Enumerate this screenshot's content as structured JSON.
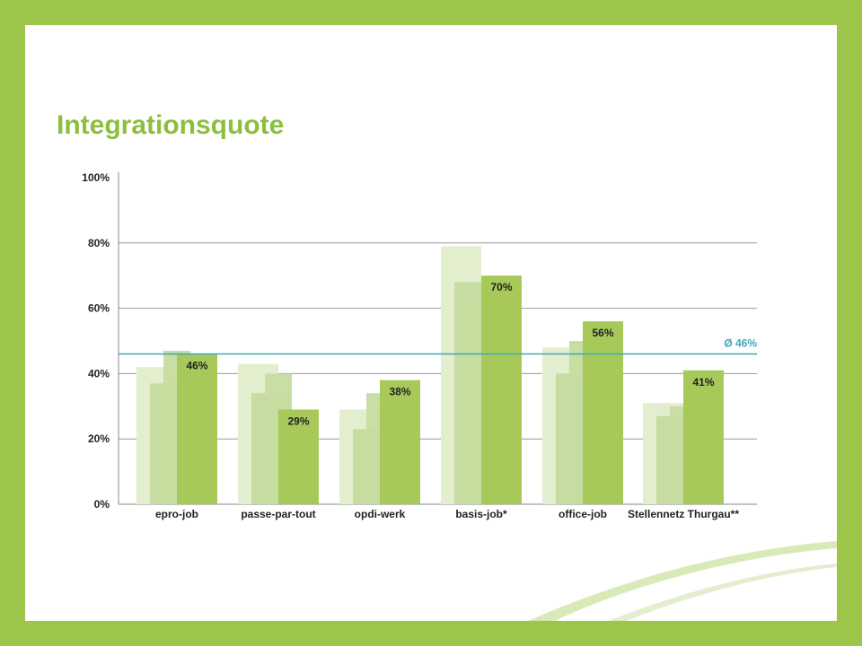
{
  "slide": {
    "title": "Integrationsquote"
  },
  "colors": {
    "frame": "#9dc54a",
    "title": "#8bbf3c",
    "bar_front": "#a7c95a",
    "bar_mid": "#c6dca0",
    "bar_back": "#e3eecf",
    "average_line": "#3aa8b8",
    "grid": "#999999"
  },
  "chart_data": {
    "type": "bar",
    "categories": [
      "epro-job",
      "passe-par-tout",
      "opdi-werk",
      "basis-job*",
      "office-job",
      "Stellennetz Thurgau**"
    ],
    "series": [
      {
        "values": [
          42,
          43,
          29,
          79,
          48,
          31
        ]
      },
      {
        "values": [
          37,
          34,
          23,
          68,
          40,
          27
        ]
      },
      {
        "values": [
          47,
          40,
          34,
          63,
          50,
          30
        ]
      },
      {
        "values": [
          46,
          29,
          38,
          70,
          56,
          41
        ]
      }
    ],
    "value_labels": [
      "46%",
      "29%",
      "38%",
      "70%",
      "56%",
      "41%"
    ],
    "y_ticks": [
      "0%",
      "20%",
      "40%",
      "60%",
      "80%",
      "100%"
    ],
    "ylim": [
      0,
      100
    ],
    "average": {
      "value": 46,
      "label": "Ø 46%"
    },
    "grid": true
  }
}
